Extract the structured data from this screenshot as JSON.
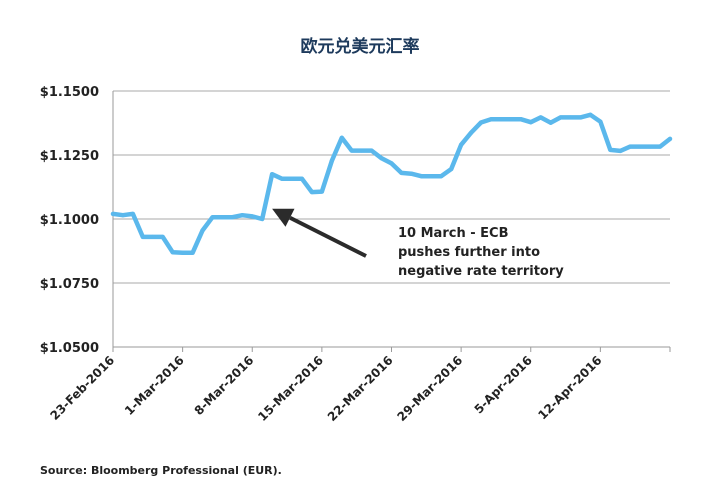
{
  "chart_data": {
    "type": "line",
    "title": "欧元兑美元汇率",
    "xlabel": "",
    "ylabel": "",
    "ylim": [
      1.05,
      1.15
    ],
    "yticks": [
      {
        "value": 1.05,
        "label": "$1.0500"
      },
      {
        "value": 1.075,
        "label": "$1.0750"
      },
      {
        "value": 1.1,
        "label": "$1.1000"
      },
      {
        "value": 1.125,
        "label": "$1.1250"
      },
      {
        "value": 1.15,
        "label": "$1.1500"
      }
    ],
    "xlim": [
      "2016-02-23",
      "2016-04-19"
    ],
    "xticks": [
      "2016-02-23",
      "2016-03-01",
      "2016-03-08",
      "2016-03-15",
      "2016-03-22",
      "2016-03-29",
      "2016-04-05",
      "2016-04-12",
      "2016-04-19"
    ],
    "xtick_labels": [
      "23-Feb-2016",
      "1-Mar-2016",
      "8-Mar-2016",
      "15-Mar-2016",
      "22-Mar-2016",
      "29-Mar-2016",
      "5-Apr-2016",
      "12-Apr-2016",
      ""
    ],
    "grid": "horizontal",
    "series": [
      {
        "color": "#5bb8ec",
        "x": [
          "2016-02-23",
          "2016-02-24",
          "2016-02-25",
          "2016-02-26",
          "2016-02-27",
          "2016-02-28",
          "2016-02-29",
          "2016-03-01",
          "2016-03-02",
          "2016-03-03",
          "2016-03-04",
          "2016-03-05",
          "2016-03-06",
          "2016-03-07",
          "2016-03-08",
          "2016-03-09",
          "2016-03-10",
          "2016-03-11",
          "2016-03-12",
          "2016-03-13",
          "2016-03-14",
          "2016-03-15",
          "2016-03-16",
          "2016-03-17",
          "2016-03-18",
          "2016-03-19",
          "2016-03-20",
          "2016-03-21",
          "2016-03-22",
          "2016-03-23",
          "2016-03-24",
          "2016-03-25",
          "2016-03-26",
          "2016-03-27",
          "2016-03-28",
          "2016-03-29",
          "2016-03-30",
          "2016-03-31",
          "2016-04-01",
          "2016-04-02",
          "2016-04-03",
          "2016-04-04",
          "2016-04-05",
          "2016-04-06",
          "2016-04-07",
          "2016-04-08",
          "2016-04-09",
          "2016-04-10",
          "2016-04-11",
          "2016-04-12",
          "2016-04-13",
          "2016-04-14",
          "2016-04-15",
          "2016-04-16",
          "2016-04-17",
          "2016-04-18",
          "2016-04-19"
        ],
        "values": [
          1.102,
          1.1015,
          1.102,
          1.093,
          1.093,
          1.093,
          1.087,
          1.0868,
          1.0868,
          1.0955,
          1.1007,
          1.1007,
          1.1007,
          1.1015,
          1.101,
          1.1,
          1.1175,
          1.1157,
          1.1157,
          1.1157,
          1.1105,
          1.1107,
          1.1227,
          1.1317,
          1.1267,
          1.1267,
          1.1267,
          1.1237,
          1.1217,
          1.118,
          1.1177,
          1.1167,
          1.1167,
          1.1167,
          1.1195,
          1.129,
          1.1337,
          1.1377,
          1.139,
          1.139,
          1.139,
          1.139,
          1.1378,
          1.1397,
          1.1376,
          1.1397,
          1.1397,
          1.1397,
          1.1407,
          1.138,
          1.127,
          1.1266,
          1.1283,
          1.1283,
          1.1283,
          1.1283,
          1.1313
        ]
      }
    ],
    "annotation": {
      "lines": [
        "10 March - ECB",
        "pushes further into",
        "negative rate territory"
      ],
      "arrow_target": {
        "x": "2016-03-10",
        "y": 1.104
      }
    },
    "source": "Source: Bloomberg Professional (EUR)."
  }
}
